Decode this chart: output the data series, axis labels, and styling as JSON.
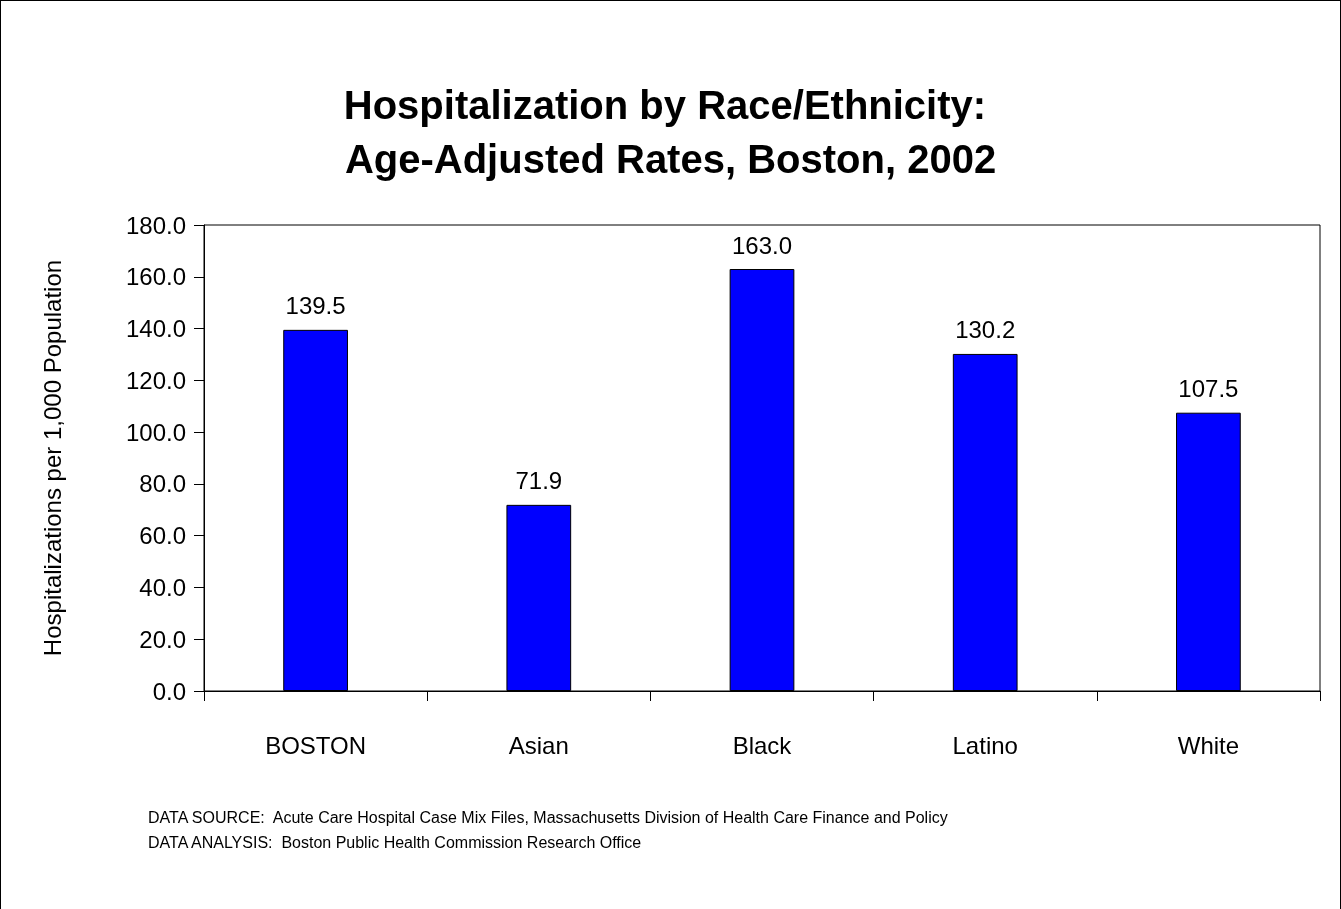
{
  "chart_data": {
    "type": "bar",
    "title": "Hospitalization by Race/Ethnicity: Age-Adjusted Rates, Boston, 2002",
    "ylabel": "Hospitalizations per 1,000 Population",
    "categories": [
      "BOSTON",
      "Asian",
      "Black",
      "Latino",
      "White"
    ],
    "values": [
      139.5,
      71.9,
      163.0,
      130.2,
      107.5
    ],
    "value_labels": [
      "139.5",
      "71.9",
      "163.0",
      "130.2",
      "107.5"
    ],
    "color": "#0000ff",
    "ylim": [
      0,
      180
    ],
    "yticks": [
      {
        "value": 0,
        "label": "0.0"
      },
      {
        "value": 20,
        "label": "20.0"
      },
      {
        "value": 40,
        "label": "40.0"
      },
      {
        "value": 60,
        "label": "60.0"
      },
      {
        "value": 80,
        "label": "80.0"
      },
      {
        "value": 100,
        "label": "100.0"
      },
      {
        "value": 120,
        "label": "120.0"
      },
      {
        "value": 140,
        "label": "140.0"
      },
      {
        "value": 160,
        "label": "160.0"
      },
      {
        "value": 180,
        "label": "180.0"
      }
    ],
    "grid": false,
    "annotations": [
      "DATA SOURCE:  Acute Care Hospital Case Mix Files, Massachusetts Division of Health Care Finance and Policy",
      "DATA ANALYSIS:  Boston Public Health Commission Research Office"
    ]
  }
}
